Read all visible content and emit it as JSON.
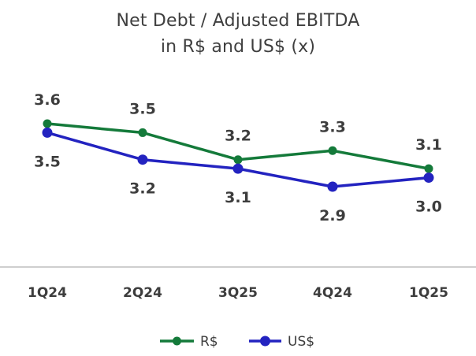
{
  "chart_data": {
    "type": "line",
    "title": "Net Debt / Adjusted EBITDA",
    "subtitle": "in R$ and US$ (x)",
    "categories": [
      "1Q24",
      "2Q24",
      "3Q25",
      "4Q24",
      "1Q25"
    ],
    "series": [
      {
        "name": "R$",
        "color": "#147a3a",
        "values": [
          3.6,
          3.5,
          3.2,
          3.3,
          3.1
        ],
        "labels": [
          "3.6",
          "3.5",
          "3.2",
          "3.3",
          "3.1"
        ],
        "label_position": "above"
      },
      {
        "name": "US$",
        "color": "#2323c0",
        "values": [
          3.5,
          3.2,
          3.1,
          2.9,
          3.0
        ],
        "labels": [
          "3.5",
          "3.2",
          "3.1",
          "2.9",
          "3.0"
        ],
        "label_position": "below"
      }
    ],
    "grid": false,
    "legend_position": "bottom"
  }
}
